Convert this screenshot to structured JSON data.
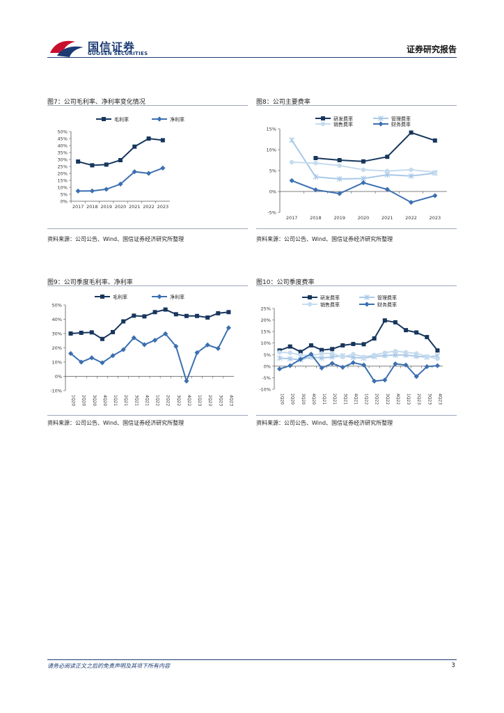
{
  "header": {
    "company_cn": "国信证券",
    "company_en": "GUOSEN SECURITIES",
    "report_type": "证券研究报告"
  },
  "figures": [
    {
      "title": "图7：公司毛利率、净利率变化情况",
      "source": "资料来源：公司公告、Wind、国信证券经济研究所整理"
    },
    {
      "title": "图8：公司主要费率",
      "source": "资料来源：公司公告、Wind、国信证券经济研究所整理"
    },
    {
      "title": "图9：公司季度毛利率、净利率",
      "source": "资料来源：公司公告、Wind、国信证券经济研究所整理"
    },
    {
      "title": "图10：公司季度费率",
      "source": "资料来源：公司公告、Wind、国信证券经济研究所整理"
    }
  ],
  "footer": {
    "disclaimer": "请务必阅读正文之后的免责声明及其项下所有内容",
    "page": "3"
  },
  "colors": {
    "brand": "#1b3a73",
    "dark_series": "#17365d",
    "mid_series": "#3b6fb0",
    "light_series": "#a8c8e8",
    "pale_series": "#c5dbee"
  },
  "chart_data": [
    {
      "type": "line",
      "categories": [
        "2017",
        "2018",
        "2019",
        "2020",
        "2021",
        "2022",
        "2023"
      ],
      "ylim": [
        0,
        50
      ],
      "yticks": [
        "0%",
        "5%",
        "10%",
        "15%",
        "20%",
        "25%",
        "30%",
        "35%",
        "40%",
        "45%",
        "50%"
      ],
      "legend_position": "top",
      "series": [
        {
          "name": "毛利率",
          "marker": "square",
          "color": "#17365d",
          "values": [
            28.5,
            25.8,
            26.3,
            29.5,
            39.2,
            45.0,
            43.8
          ]
        },
        {
          "name": "净利率",
          "marker": "diamond",
          "color": "#3b6fb0",
          "values": [
            7.3,
            7.4,
            8.6,
            12.3,
            21.2,
            20.0,
            23.8
          ]
        }
      ]
    },
    {
      "type": "line",
      "categories": [
        "2017",
        "2018",
        "2019",
        "2020",
        "2021",
        "2022",
        "2023"
      ],
      "ylim": [
        -5,
        15
      ],
      "yticks": [
        "-5%",
        "0%",
        "5%",
        "10%",
        "15%"
      ],
      "legend_position": "top",
      "series": [
        {
          "name": "研发费率",
          "marker": "square",
          "color": "#17365d",
          "values": [
            null,
            8.0,
            7.5,
            7.2,
            8.3,
            14.1,
            12.2
          ]
        },
        {
          "name": "管理费率",
          "marker": "asterisk",
          "color": "#a8c8e8",
          "values": [
            12.3,
            3.5,
            3.0,
            3.1,
            4.0,
            3.7,
            4.4
          ]
        },
        {
          "name": "销售费率",
          "marker": "circle",
          "color": "#c5dbee",
          "values": [
            7.0,
            6.8,
            6.2,
            5.2,
            4.9,
            5.2,
            4.6
          ]
        },
        {
          "name": "财务费率",
          "marker": "diamond",
          "color": "#3b6fb0",
          "values": [
            2.6,
            0.4,
            -0.5,
            2.1,
            0.5,
            -2.6,
            -1.0
          ]
        }
      ]
    },
    {
      "type": "line",
      "categories": [
        "1Q20",
        "2Q20",
        "3Q20",
        "4Q20",
        "1Q21",
        "2Q21",
        "3Q21",
        "4Q21",
        "1Q22",
        "2Q22",
        "3Q22",
        "4Q22",
        "1Q23",
        "2Q23",
        "3Q23",
        "4Q23"
      ],
      "ylim": [
        -10,
        50
      ],
      "yticks": [
        "-10%",
        "0%",
        "10%",
        "20%",
        "30%",
        "40%",
        "50%"
      ],
      "legend_position": "top",
      "series": [
        {
          "name": "毛利率",
          "marker": "square",
          "color": "#17365d",
          "values": [
            30.0,
            30.5,
            30.8,
            26.2,
            31.0,
            38.5,
            42.5,
            42.0,
            45.0,
            46.8,
            43.5,
            42.3,
            42.3,
            41.2,
            44.2,
            45.0
          ]
        },
        {
          "name": "净利率",
          "marker": "diamond",
          "color": "#3b6fb0",
          "values": [
            16.0,
            10.0,
            13.0,
            9.5,
            14.5,
            18.7,
            27.0,
            22.2,
            25.3,
            29.8,
            21.0,
            -3.3,
            16.6,
            22.0,
            19.5,
            34.0
          ]
        }
      ]
    },
    {
      "type": "line",
      "categories": [
        "1Q20",
        "2Q20",
        "3Q20",
        "4Q20",
        "1Q21",
        "2Q21",
        "3Q21",
        "4Q21",
        "1Q22",
        "2Q22",
        "3Q22",
        "4Q22",
        "1Q23",
        "2Q23",
        "3Q23",
        "4Q23"
      ],
      "ylim": [
        -10,
        25
      ],
      "yticks": [
        "-10%",
        "-5%",
        "0%",
        "5%",
        "10%",
        "15%",
        "20%",
        "25%"
      ],
      "legend_position": "top",
      "series": [
        {
          "name": "研发费率",
          "marker": "square",
          "color": "#17365d",
          "values": [
            6.8,
            8.5,
            6.2,
            9.0,
            7.0,
            7.4,
            9.0,
            9.6,
            9.5,
            12.0,
            19.8,
            19.0,
            15.6,
            14.6,
            12.6,
            6.8
          ]
        },
        {
          "name": "管理费率",
          "marker": "asterisk",
          "color": "#a8c8e8",
          "values": [
            3.5,
            3.2,
            2.8,
            4.0,
            3.5,
            4.0,
            4.5,
            3.8,
            3.5,
            4.2,
            4.6,
            4.8,
            4.8,
            4.3,
            3.9,
            4.5
          ]
        },
        {
          "name": "销售费率",
          "marker": "circle",
          "color": "#c5dbee",
          "values": [
            6.0,
            5.8,
            4.8,
            4.5,
            5.5,
            5.5,
            4.0,
            5.2,
            4.0,
            4.8,
            5.8,
            6.5,
            6.0,
            5.5,
            4.2,
            3.2
          ]
        },
        {
          "name": "财务费率",
          "marker": "diamond",
          "color": "#3b6fb0",
          "values": [
            -1.2,
            0.2,
            3.0,
            5.2,
            -0.8,
            1.2,
            -0.5,
            1.5,
            0.5,
            -6.5,
            -6.0,
            1.0,
            0.5,
            -4.5,
            -0.2,
            0.2
          ]
        }
      ]
    }
  ]
}
